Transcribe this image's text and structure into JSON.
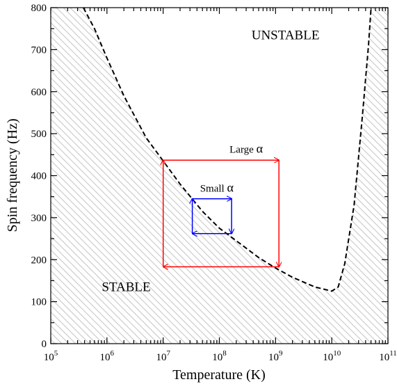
{
  "chart_data": {
    "type": "line",
    "xlabel": "Temperature (K)",
    "ylabel": "Spin frequency (Hz)",
    "xscale": "log",
    "xlim": [
      100000,
      100000000000
    ],
    "ylim": [
      0,
      800
    ],
    "x_tick_labels": [
      {
        "value": 100000,
        "base": "10",
        "exp": "5"
      },
      {
        "value": 1000000,
        "base": "10",
        "exp": "6"
      },
      {
        "value": 10000000,
        "base": "10",
        "exp": "7"
      },
      {
        "value": 100000000,
        "base": "10",
        "exp": "8"
      },
      {
        "value": 1000000000,
        "base": "10",
        "exp": "9"
      },
      {
        "value": 10000000000,
        "base": "10",
        "exp": "10"
      },
      {
        "value": 100000000000,
        "base": "10",
        "exp": "11"
      }
    ],
    "y_ticks": [
      0,
      100,
      200,
      300,
      400,
      500,
      600,
      700,
      800
    ],
    "y_tick_labels": [
      "0",
      "100",
      "200",
      "300",
      "400",
      "500",
      "600",
      "700",
      "800"
    ],
    "grid": false,
    "instability_curve": {
      "style": "dashed",
      "color": "#000000",
      "x": [
        380000,
        600000,
        1000000,
        2000000,
        5000000,
        10000000,
        20000000,
        50000000,
        100000000,
        200000000,
        500000000,
        1000000000,
        2000000000,
        5000000000,
        10000000000,
        13000000000,
        17000000000,
        25000000000,
        35000000000,
        45000000000,
        50000000000
      ],
      "y": [
        800,
        750,
        680,
        590,
        490,
        435,
        380,
        315,
        275,
        245,
        205,
        180,
        158,
        135,
        125,
        135,
        190,
        330,
        540,
        710,
        800
      ]
    },
    "shaded_region": {
      "name": "stable region",
      "pattern": "diagonal hatching",
      "color": "#c8c8c8"
    },
    "regions": [
      {
        "label": "UNSTABLE",
        "x": 1500000000,
        "y": 725
      },
      {
        "label": "STABLE",
        "x": 2200000,
        "y": 125
      }
    ],
    "loops": [
      {
        "label": "Large",
        "symbol": "α",
        "color": "#ff0000",
        "label_at": {
          "x": 300000000,
          "y": 455
        },
        "x_range": [
          10000000,
          1150000000
        ],
        "y_range": [
          183,
          437
        ]
      },
      {
        "label": "Small",
        "symbol": "α",
        "color": "#0000ff",
        "label_at": {
          "x": 90000000,
          "y": 362
        },
        "x_range": [
          33000000,
          165000000
        ],
        "y_range": [
          262,
          345
        ]
      }
    ]
  }
}
